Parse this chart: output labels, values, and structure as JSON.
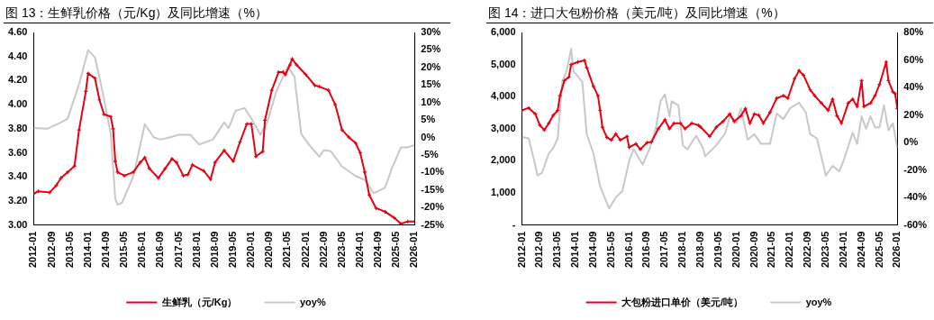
{
  "chart_data": [
    {
      "type": "line",
      "title": "图 13：生鲜乳价格（元/Kg）及同比增速（%）",
      "legend": "bottom",
      "grid": false,
      "xlim": [
        "2012-01",
        "2026-01"
      ],
      "xticks": [
        "2012-01",
        "2012-09",
        "2013-05",
        "2014-01",
        "2014-09",
        "2015-05",
        "2016-01",
        "2016-09",
        "2017-05",
        "2018-01",
        "2018-09",
        "2019-05",
        "2020-01",
        "2020-09",
        "2021-05",
        "2022-01",
        "2022-09",
        "2023-05",
        "2024-01",
        "2024-09",
        "2025-05",
        "2026-01"
      ],
      "ylim": [
        3.0,
        4.6
      ],
      "yticks": [
        {
          "value": 3.0,
          "label": "3.00"
        },
        {
          "value": 3.2,
          "label": "3.20"
        },
        {
          "value": 3.4,
          "label": "3.40"
        },
        {
          "value": 3.6,
          "label": "3.60"
        },
        {
          "value": 3.8,
          "label": "3.80"
        },
        {
          "value": 4.0,
          "label": "4.00"
        },
        {
          "value": 4.2,
          "label": "4.20"
        },
        {
          "value": 4.4,
          "label": "4.40"
        },
        {
          "value": 4.6,
          "label": "4.60"
        }
      ],
      "y2lim": [
        -25,
        30
      ],
      "y2ticks": [
        {
          "value": -25,
          "label": "-25%"
        },
        {
          "value": -20,
          "label": "-20%"
        },
        {
          "value": -15,
          "label": "-15%"
        },
        {
          "value": -10,
          "label": "-10%"
        },
        {
          "value": -5,
          "label": "-5%"
        },
        {
          "value": 0,
          "label": "0%"
        },
        {
          "value": 5,
          "label": "5%"
        },
        {
          "value": 10,
          "label": "10%"
        },
        {
          "value": 15,
          "label": "15%"
        },
        {
          "value": 20,
          "label": "20%"
        },
        {
          "value": 25,
          "label": "25%"
        },
        {
          "value": 30,
          "label": "30%"
        }
      ],
      "series": [
        {
          "name": "生鲜乳（元/Kg）",
          "color": "#e60012",
          "marker": "cross",
          "x": [
            "2012-01",
            "2012-03",
            "2012-08",
            "2012-11",
            "2013-01",
            "2013-04",
            "2013-07",
            "2013-09",
            "2013-12",
            "2014-01",
            "2014-04",
            "2014-06",
            "2014-08",
            "2014-11",
            "2014-12",
            "2015-01",
            "2015-02",
            "2015-05",
            "2015-09",
            "2015-12",
            "2016-02",
            "2016-04",
            "2016-08",
            "2016-11",
            "2017-02",
            "2017-04",
            "2017-07",
            "2017-09",
            "2017-11",
            "2018-04",
            "2018-07",
            "2018-09",
            "2019-01",
            "2019-05",
            "2019-08",
            "2019-11",
            "2020-01",
            "2020-03",
            "2020-06",
            "2020-07",
            "2020-10",
            "2021-01",
            "2021-03",
            "2021-04",
            "2021-06",
            "2021-07",
            "2021-09",
            "2022-01",
            "2022-05",
            "2022-07",
            "2022-11",
            "2023-02",
            "2023-05",
            "2023-08",
            "2023-11",
            "2024-01",
            "2024-03",
            "2024-05",
            "2024-08",
            "2024-12",
            "2025-04",
            "2025-07",
            "2025-10",
            "2026-01"
          ],
          "values": [
            3.26,
            3.28,
            3.27,
            3.33,
            3.39,
            3.44,
            3.49,
            3.79,
            4.11,
            4.26,
            4.22,
            4.04,
            3.92,
            3.9,
            3.8,
            3.53,
            3.44,
            3.41,
            3.44,
            3.52,
            3.56,
            3.47,
            3.39,
            3.47,
            3.55,
            3.52,
            3.41,
            3.42,
            3.5,
            3.45,
            3.38,
            3.52,
            3.62,
            3.53,
            3.69,
            3.84,
            3.84,
            3.57,
            3.61,
            3.87,
            4.12,
            4.27,
            4.27,
            4.25,
            4.33,
            4.38,
            4.33,
            4.25,
            4.16,
            4.15,
            4.12,
            4.0,
            3.79,
            3.73,
            3.68,
            3.6,
            3.44,
            3.25,
            3.14,
            3.11,
            3.06,
            3.01,
            3.03,
            3.03
          ]
        },
        {
          "name": "yoy%",
          "color": "#c8c8c8",
          "axis": "y2",
          "marker": "none",
          "x": [
            "2012-01",
            "2012-07",
            "2013-01",
            "2013-04",
            "2013-09",
            "2014-01",
            "2014-04",
            "2014-07",
            "2014-11",
            "2015-01",
            "2015-02",
            "2015-04",
            "2015-09",
            "2015-12",
            "2016-02",
            "2016-06",
            "2016-09",
            "2017-02",
            "2017-05",
            "2017-10",
            "2018-02",
            "2018-08",
            "2019-01",
            "2019-03",
            "2019-06",
            "2019-10",
            "2020-01",
            "2020-05",
            "2020-08",
            "2020-12",
            "2021-05",
            "2021-08",
            "2021-11",
            "2022-02",
            "2022-07",
            "2022-09",
            "2022-12",
            "2023-05",
            "2023-11",
            "2024-03",
            "2024-07",
            "2024-12",
            "2025-03",
            "2025-07",
            "2025-10",
            "2026-01"
          ],
          "values": [
            2.7,
            2.5,
            4.3,
            5.4,
            15.2,
            24.9,
            22.9,
            14.2,
            1.0,
            -17.5,
            -19.2,
            -18.6,
            -11,
            -2.2,
            3.8,
            0,
            -0.6,
            0.2,
            0.8,
            0.8,
            -2,
            -0.6,
            4.3,
            2.7,
            7.6,
            8.4,
            5.4,
            0.8,
            4.3,
            13.1,
            20.2,
            17.4,
            1.0,
            -1.7,
            -5.5,
            -3.6,
            -3.9,
            -8.3,
            -11,
            -12.1,
            -15.9,
            -14.3,
            -8.8,
            -2.8,
            -2.8,
            -2.2
          ]
        }
      ]
    },
    {
      "type": "line",
      "title": "图 14：进口大包粉价格（美元/吨）及同比增速（%）",
      "legend": "bottom",
      "grid": false,
      "xlim": [
        "2012-01",
        "2026-01"
      ],
      "xticks": [
        "2012-01",
        "2012-09",
        "2013-05",
        "2014-01",
        "2014-09",
        "2015-05",
        "2016-01",
        "2016-09",
        "2017-05",
        "2018-01",
        "2018-09",
        "2019-05",
        "2020-01",
        "2020-09",
        "2021-05",
        "2022-01",
        "2022-09",
        "2023-05",
        "2024-01",
        "2024-09",
        "2025-05",
        "2026-01"
      ],
      "ylim": [
        0,
        6000
      ],
      "yticks": [
        {
          "value": 0,
          "label": "-"
        },
        {
          "value": 1000,
          "label": "1,000"
        },
        {
          "value": 2000,
          "label": "2,000"
        },
        {
          "value": 3000,
          "label": "3,000"
        },
        {
          "value": 4000,
          "label": "4,000"
        },
        {
          "value": 5000,
          "label": "5,000"
        },
        {
          "value": 6000,
          "label": "6,000"
        }
      ],
      "y2lim": [
        -60,
        80
      ],
      "y2ticks": [
        {
          "value": -60,
          "label": "-60%"
        },
        {
          "value": -40,
          "label": "-40%"
        },
        {
          "value": -20,
          "label": "-20%"
        },
        {
          "value": 0,
          "label": "0%"
        },
        {
          "value": 20,
          "label": "20%"
        },
        {
          "value": 40,
          "label": "40%"
        },
        {
          "value": 60,
          "label": "60%"
        },
        {
          "value": 80,
          "label": "80%"
        }
      ],
      "series": [
        {
          "name": "大包粉进口单价（美元/吨）",
          "color": "#e60012",
          "marker": "cross",
          "x": [
            "2012-01",
            "2012-04",
            "2012-07",
            "2012-09",
            "2012-11",
            "2013-01",
            "2013-03",
            "2013-05",
            "2013-06",
            "2013-08",
            "2013-10",
            "2013-11",
            "2014-02",
            "2014-05",
            "2014-06",
            "2014-09",
            "2014-11",
            "2014-12",
            "2015-01",
            "2015-03",
            "2015-05",
            "2015-07",
            "2015-09",
            "2015-12",
            "2016-01",
            "2016-04",
            "2016-06",
            "2016-09",
            "2016-11",
            "2017-02",
            "2017-05",
            "2017-07",
            "2017-09",
            "2017-12",
            "2018-02",
            "2018-05",
            "2018-08",
            "2018-09",
            "2019-01",
            "2019-04",
            "2019-07",
            "2019-10",
            "2019-12",
            "2020-03",
            "2020-05",
            "2020-07",
            "2020-09",
            "2020-11",
            "2021-01",
            "2021-04",
            "2021-07",
            "2021-10",
            "2021-12",
            "2022-03",
            "2022-05",
            "2022-07",
            "2022-10",
            "2022-12",
            "2023-03",
            "2023-06",
            "2023-08",
            "2023-10",
            "2023-12",
            "2024-03",
            "2024-05",
            "2024-07",
            "2024-09",
            "2024-10",
            "2025-01",
            "2025-03",
            "2025-05",
            "2025-08",
            "2025-09",
            "2025-11",
            "2025-12",
            "2026-01"
          ],
          "values": [
            3570,
            3650,
            3460,
            3110,
            2960,
            3170,
            3420,
            3570,
            4030,
            4500,
            4610,
            5000,
            5080,
            5130,
            4900,
            4320,
            4030,
            3570,
            3050,
            2730,
            2650,
            2840,
            2650,
            2760,
            2420,
            2530,
            2360,
            2570,
            2590,
            3000,
            3280,
            3000,
            3170,
            3170,
            3000,
            3170,
            3110,
            3050,
            2760,
            3050,
            3230,
            3460,
            3230,
            3400,
            3630,
            3170,
            3460,
            3420,
            3170,
            3510,
            3950,
            4030,
            3950,
            4560,
            4810,
            4670,
            4210,
            4030,
            3800,
            3570,
            3920,
            3400,
            3170,
            3800,
            3920,
            3690,
            4500,
            3690,
            3800,
            4030,
            4380,
            5080,
            4500,
            4150,
            4090,
            3630
          ]
        },
        {
          "name": "yoy%",
          "color": "#c8c8c8",
          "axis": "y2",
          "marker": "none",
          "x": [
            "2012-01",
            "2012-04",
            "2012-06",
            "2012-08",
            "2012-10",
            "2013-01",
            "2013-03",
            "2013-05",
            "2013-07",
            "2013-09",
            "2013-11",
            "2013-12",
            "2014-04",
            "2014-06",
            "2014-09",
            "2014-12",
            "2015-04",
            "2015-07",
            "2015-10",
            "2016-01",
            "2016-03",
            "2016-07",
            "2016-10",
            "2017-01",
            "2017-03",
            "2017-05",
            "2017-07",
            "2017-08",
            "2017-11",
            "2018-01",
            "2018-03",
            "2018-07",
            "2018-10",
            "2018-11",
            "2019-04",
            "2019-08",
            "2019-10",
            "2020-01",
            "2020-03",
            "2020-06",
            "2020-09",
            "2020-12",
            "2021-04",
            "2021-07",
            "2021-10",
            "2022-01",
            "2022-05",
            "2022-08",
            "2022-10",
            "2023-01",
            "2023-05",
            "2023-08",
            "2023-11",
            "2024-01",
            "2024-05",
            "2024-07",
            "2024-09",
            "2024-11",
            "2025-01",
            "2025-03",
            "2025-05",
            "2025-07",
            "2025-09",
            "2025-11",
            "2026-01"
          ],
          "values": [
            4,
            3,
            -10,
            -24,
            -22,
            -8,
            -4,
            3,
            44,
            52,
            68,
            52,
            44,
            6,
            -8,
            -32,
            -48,
            -40,
            -35,
            -13,
            -5,
            -16,
            -5,
            11,
            30,
            35,
            19,
            30,
            27,
            -2,
            -5,
            5,
            -4,
            -10,
            -2,
            7,
            19,
            14,
            25,
            2,
            6,
            -1,
            -1,
            21,
            17,
            25,
            29,
            22,
            6,
            3,
            -24,
            -17,
            -21,
            -13,
            7,
            -1,
            19,
            10,
            19,
            11,
            11,
            27,
            9,
            14,
            -4
          ]
        }
      ]
    }
  ]
}
